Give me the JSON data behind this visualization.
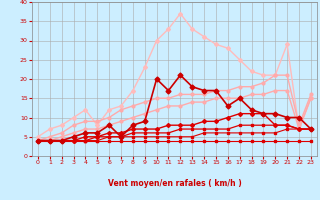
{
  "xlabel": "Vent moyen/en rafales ( km/h )",
  "bg_color": "#cceeff",
  "grid_color": "#aaaaaa",
  "x": [
    0,
    1,
    2,
    3,
    4,
    5,
    6,
    7,
    8,
    9,
    10,
    11,
    12,
    13,
    14,
    15,
    16,
    17,
    18,
    19,
    20,
    21,
    22,
    23
  ],
  "lines": [
    {
      "y": [
        4,
        4,
        4,
        4,
        4,
        4,
        4,
        4,
        4,
        4,
        4,
        4,
        4,
        4,
        4,
        4,
        4,
        4,
        4,
        4,
        4,
        4,
        4,
        4
      ],
      "color": "#dd0000",
      "lw": 0.8,
      "marker": "s",
      "ms": 1.5,
      "zorder": 5
    },
    {
      "y": [
        4,
        4,
        4,
        4,
        4,
        4,
        5,
        5,
        5,
        5,
        5,
        5,
        5,
        5,
        6,
        6,
        6,
        6,
        6,
        6,
        6,
        7,
        7,
        7
      ],
      "color": "#dd0000",
      "lw": 0.8,
      "marker": "s",
      "ms": 1.5,
      "zorder": 5
    },
    {
      "y": [
        4,
        4,
        4,
        4,
        4,
        5,
        5,
        5,
        6,
        6,
        6,
        6,
        7,
        7,
        7,
        7,
        7,
        8,
        8,
        8,
        8,
        8,
        7,
        7
      ],
      "color": "#dd0000",
      "lw": 0.9,
      "marker": "s",
      "ms": 2,
      "zorder": 5
    },
    {
      "y": [
        4,
        4,
        4,
        4,
        5,
        5,
        6,
        6,
        7,
        7,
        7,
        8,
        8,
        8,
        9,
        9,
        10,
        11,
        11,
        11,
        8,
        8,
        7,
        7
      ],
      "color": "#dd0000",
      "lw": 1.0,
      "marker": "D",
      "ms": 2,
      "zorder": 6
    },
    {
      "y": [
        4,
        4,
        4,
        5,
        6,
        6,
        8,
        5,
        8,
        9,
        20,
        17,
        21,
        18,
        17,
        17,
        13,
        15,
        12,
        11,
        11,
        10,
        10,
        7
      ],
      "color": "#cc0000",
      "lw": 1.2,
      "marker": "D",
      "ms": 2.5,
      "zorder": 7
    },
    {
      "y": [
        4,
        4,
        5,
        6,
        7,
        7,
        8,
        9,
        10,
        11,
        12,
        13,
        13,
        14,
        14,
        15,
        15,
        15,
        16,
        16,
        17,
        17,
        7,
        15
      ],
      "color": "#ffaaaa",
      "lw": 1.0,
      "marker": "o",
      "ms": 2,
      "zorder": 3
    },
    {
      "y": [
        4,
        5,
        6,
        8,
        9,
        9,
        10,
        12,
        13,
        14,
        15,
        15,
        16,
        16,
        16,
        17,
        17,
        18,
        18,
        19,
        21,
        21,
        8,
        16
      ],
      "color": "#ffaaaa",
      "lw": 1.0,
      "marker": "o",
      "ms": 2,
      "zorder": 3
    },
    {
      "y": [
        5,
        7,
        8,
        10,
        12,
        8,
        12,
        13,
        17,
        23,
        30,
        33,
        37,
        33,
        31,
        29,
        28,
        25,
        22,
        21,
        21,
        29,
        7,
        15
      ],
      "color": "#ffbbbb",
      "lw": 1.0,
      "marker": "D",
      "ms": 2,
      "zorder": 2
    }
  ],
  "ylim": [
    0,
    40
  ],
  "xlim": [
    -0.5,
    23.5
  ],
  "yticks": [
    0,
    5,
    10,
    15,
    20,
    25,
    30,
    35,
    40
  ],
  "xticks": [
    0,
    1,
    2,
    3,
    4,
    5,
    6,
    7,
    8,
    9,
    10,
    11,
    12,
    13,
    14,
    15,
    16,
    17,
    18,
    19,
    20,
    21,
    22,
    23
  ],
  "tick_color": "#cc0000",
  "label_color": "#cc0000",
  "arrows": [
    "←",
    "↙",
    "↙",
    "↙",
    "←",
    "←",
    "←",
    "←",
    "↙",
    "↙",
    "↘",
    "↘",
    "↘",
    "↗",
    "↗",
    "↗",
    "↗",
    "↗",
    "↗",
    "↗",
    "↗",
    "↑",
    "↗",
    "↗"
  ]
}
